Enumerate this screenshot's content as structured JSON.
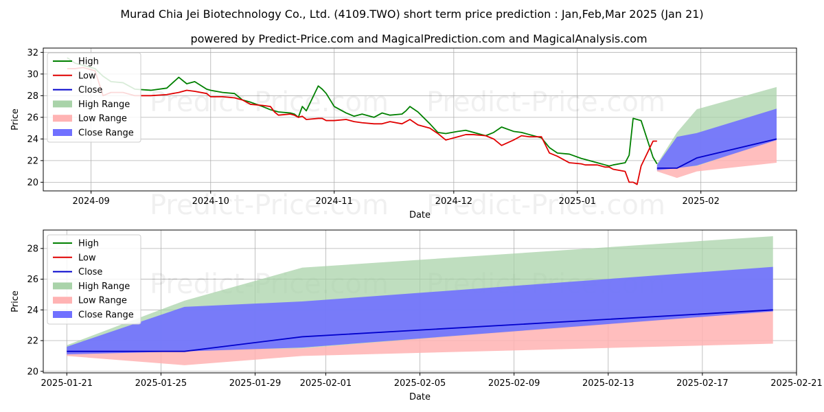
{
  "header": {
    "title": "Murad Chia Jei Biotechnology Co., Ltd. (4109.TWO) short term price prediction : Jan,Feb,Mar 2025 (Jan 21)",
    "subtitle": "powered by Predict-Price.com and MagicalPrediction.com and MagicalAnalysis.com"
  },
  "watermark": "Predict-Price.com",
  "legend": {
    "high": "High",
    "low": "Low",
    "close": "Close",
    "high_range": "High Range",
    "low_range": "Low Range",
    "close_range": "Close Range"
  },
  "colors": {
    "high": "#008000",
    "low": "#e00000",
    "close": "#0000cc",
    "high_range": "#a9d3a9",
    "low_range": "#ffb3b3",
    "close_range": "#7070ff"
  },
  "chart_data": [
    {
      "type": "line",
      "xlabel": "Date",
      "ylabel": "Price",
      "xlim": [
        "2024-08-20",
        "2025-02-25"
      ],
      "ylim": [
        19.2,
        32.4
      ],
      "xticks": [
        "2024-09-01",
        "2024-10-01",
        "2024-11-01",
        "2024-12-01",
        "2025-01-01",
        "2025-02-01"
      ],
      "xtick_labels": [
        "2024-09",
        "2024-10",
        "2024-11",
        "2024-12",
        "2025-01",
        "2025-02"
      ],
      "yticks": [
        20,
        22,
        24,
        26,
        28,
        30,
        32
      ],
      "grid": true,
      "legend_position": "upper-left",
      "series": [
        {
          "name": "High",
          "x": [
            "2024-08-26",
            "2024-08-28",
            "2024-08-30",
            "2024-09-02",
            "2024-09-04",
            "2024-09-06",
            "2024-09-09",
            "2024-09-12",
            "2024-09-16",
            "2024-09-20",
            "2024-09-23",
            "2024-09-25",
            "2024-09-27",
            "2024-09-30",
            "2024-10-01",
            "2024-10-04",
            "2024-10-07",
            "2024-10-09",
            "2024-10-11",
            "2024-10-14",
            "2024-10-16",
            "2024-10-17",
            "2024-10-18",
            "2024-10-21",
            "2024-10-22",
            "2024-10-23",
            "2024-10-24",
            "2024-10-25",
            "2024-10-28",
            "2024-10-29",
            "2024-10-30",
            "2024-11-01",
            "2024-11-04",
            "2024-11-06",
            "2024-11-08",
            "2024-11-11",
            "2024-11-13",
            "2024-11-15",
            "2024-11-18",
            "2024-11-19",
            "2024-11-20",
            "2024-11-22",
            "2024-11-25",
            "2024-11-27",
            "2024-11-29",
            "2024-12-02",
            "2024-12-04",
            "2024-12-06",
            "2024-12-09",
            "2024-12-11",
            "2024-12-13",
            "2024-12-16",
            "2024-12-18",
            "2024-12-20",
            "2024-12-23",
            "2024-12-25",
            "2024-12-27",
            "2024-12-30",
            "2025-01-02",
            "2025-01-03",
            "2025-01-06",
            "2025-01-08",
            "2025-01-09",
            "2025-01-10",
            "2025-01-13",
            "2025-01-14",
            "2025-01-15",
            "2025-01-16",
            "2025-01-17",
            "2025-01-20",
            "2025-01-21"
          ],
          "values": [
            31.5,
            31.0,
            30.8,
            30.5,
            29.8,
            29.3,
            29.2,
            28.6,
            28.5,
            28.7,
            29.7,
            29.1,
            29.3,
            28.6,
            28.5,
            28.3,
            28.2,
            27.6,
            27.4,
            27.0,
            26.7,
            26.6,
            26.5,
            26.4,
            26.3,
            26.0,
            27.0,
            26.6,
            28.9,
            28.6,
            28.2,
            27.0,
            26.4,
            26.1,
            26.3,
            26.0,
            26.4,
            26.2,
            26.3,
            26.6,
            27.0,
            26.5,
            25.4,
            24.6,
            24.5,
            24.7,
            24.8,
            24.6,
            24.3,
            24.6,
            25.1,
            24.7,
            24.6,
            24.4,
            24.1,
            23.2,
            22.7,
            22.6,
            22.2,
            22.1,
            21.8,
            21.6,
            21.5,
            21.6,
            21.8,
            22.5,
            25.9,
            25.8,
            25.7,
            22.3,
            21.7
          ]
        },
        {
          "name": "Low",
          "x": [
            "2024-08-26",
            "2024-08-28",
            "2024-08-30",
            "2024-09-02",
            "2024-09-04",
            "2024-09-06",
            "2024-09-09",
            "2024-09-12",
            "2024-09-16",
            "2024-09-20",
            "2024-09-23",
            "2024-09-25",
            "2024-09-27",
            "2024-09-30",
            "2024-10-01",
            "2024-10-04",
            "2024-10-07",
            "2024-10-09",
            "2024-10-11",
            "2024-10-14",
            "2024-10-16",
            "2024-10-17",
            "2024-10-18",
            "2024-10-21",
            "2024-10-22",
            "2024-10-23",
            "2024-10-24",
            "2024-10-25",
            "2024-10-28",
            "2024-10-29",
            "2024-10-30",
            "2024-11-01",
            "2024-11-04",
            "2024-11-06",
            "2024-11-08",
            "2024-11-11",
            "2024-11-13",
            "2024-11-15",
            "2024-11-18",
            "2024-11-19",
            "2024-11-20",
            "2024-11-22",
            "2024-11-25",
            "2024-11-27",
            "2024-11-29",
            "2024-12-02",
            "2024-12-04",
            "2024-12-06",
            "2024-12-09",
            "2024-12-11",
            "2024-12-13",
            "2024-12-16",
            "2024-12-18",
            "2024-12-20",
            "2024-12-23",
            "2024-12-25",
            "2024-12-27",
            "2024-12-30",
            "2025-01-02",
            "2025-01-03",
            "2025-01-06",
            "2025-01-08",
            "2025-01-09",
            "2025-01-10",
            "2025-01-13",
            "2025-01-14",
            "2025-01-15",
            "2025-01-16",
            "2025-01-17",
            "2025-01-20",
            "2025-01-21"
          ],
          "values": [
            30.5,
            30.5,
            30.6,
            30.3,
            28.0,
            28.3,
            28.3,
            28.0,
            28.0,
            28.1,
            28.3,
            28.5,
            28.4,
            28.2,
            27.9,
            27.9,
            27.8,
            27.6,
            27.2,
            27.1,
            27.0,
            26.5,
            26.2,
            26.3,
            26.2,
            26.0,
            26.1,
            25.8,
            25.9,
            25.9,
            25.7,
            25.7,
            25.8,
            25.6,
            25.5,
            25.4,
            25.4,
            25.6,
            25.4,
            25.6,
            25.8,
            25.3,
            25.0,
            24.5,
            23.9,
            24.2,
            24.4,
            24.4,
            24.3,
            24.0,
            23.4,
            23.9,
            24.3,
            24.2,
            24.2,
            22.7,
            22.4,
            21.8,
            21.7,
            21.6,
            21.6,
            21.4,
            21.4,
            21.2,
            21.0,
            20.0,
            20.0,
            19.8,
            21.5,
            23.8,
            23.8
          ]
        },
        {
          "name": "Close",
          "x": [
            "2025-01-21",
            "2025-01-26",
            "2025-01-31",
            "2025-02-20"
          ],
          "values": [
            21.3,
            21.3,
            22.25,
            24.0
          ]
        }
      ],
      "ranges": [
        {
          "name": "High Range",
          "x": [
            "2025-01-21",
            "2025-01-26",
            "2025-01-31",
            "2025-02-20"
          ],
          "upper": [
            21.7,
            24.6,
            26.75,
            28.8
          ],
          "lower": [
            21.1,
            21.3,
            21.5,
            23.9
          ]
        },
        {
          "name": "Low Range",
          "x": [
            "2025-01-21",
            "2025-01-26",
            "2025-01-31",
            "2025-02-20"
          ],
          "upper": [
            21.4,
            21.4,
            21.5,
            24.0
          ],
          "lower": [
            21.0,
            20.4,
            21.0,
            21.8
          ]
        },
        {
          "name": "Close Range",
          "x": [
            "2025-01-21",
            "2025-01-26",
            "2025-01-31",
            "2025-02-20"
          ],
          "upper": [
            21.6,
            24.2,
            24.55,
            26.8
          ],
          "lower": [
            21.1,
            21.3,
            21.55,
            23.9
          ]
        }
      ]
    },
    {
      "type": "line",
      "xlabel": "Date",
      "ylabel": "Price",
      "xlim": [
        "2025-01-20",
        "2025-02-21"
      ],
      "ylim": [
        19.9,
        29.2
      ],
      "xticks": [
        "2025-01-21",
        "2025-01-25",
        "2025-01-29",
        "2025-02-01",
        "2025-02-05",
        "2025-02-09",
        "2025-02-13",
        "2025-02-17",
        "2025-02-21"
      ],
      "xtick_labels": [
        "2025-01-21",
        "2025-01-25",
        "2025-01-29",
        "2025-02-01",
        "2025-02-05",
        "2025-02-09",
        "2025-02-13",
        "2025-02-17",
        "2025-02-21"
      ],
      "yticks": [
        20,
        22,
        24,
        26,
        28
      ],
      "grid": true,
      "legend_position": "upper-left",
      "series": [
        {
          "name": "Close",
          "x": [
            "2025-01-21",
            "2025-01-26",
            "2025-01-31",
            "2025-02-20"
          ],
          "values": [
            21.3,
            21.3,
            22.25,
            24.0
          ]
        }
      ],
      "ranges": [
        {
          "name": "High Range",
          "x": [
            "2025-01-21",
            "2025-01-26",
            "2025-01-31",
            "2025-02-20"
          ],
          "upper": [
            21.7,
            24.6,
            26.75,
            28.8
          ],
          "lower": [
            21.1,
            21.3,
            21.5,
            23.9
          ]
        },
        {
          "name": "Low Range",
          "x": [
            "2025-01-21",
            "2025-01-26",
            "2025-01-31",
            "2025-02-20"
          ],
          "upper": [
            21.4,
            21.4,
            21.5,
            24.0
          ],
          "lower": [
            21.0,
            20.4,
            21.0,
            21.8
          ]
        },
        {
          "name": "Close Range",
          "x": [
            "2025-01-21",
            "2025-01-26",
            "2025-01-31",
            "2025-02-20"
          ],
          "upper": [
            21.6,
            24.2,
            24.55,
            26.8
          ],
          "lower": [
            21.1,
            21.3,
            21.55,
            23.9
          ]
        }
      ]
    }
  ]
}
